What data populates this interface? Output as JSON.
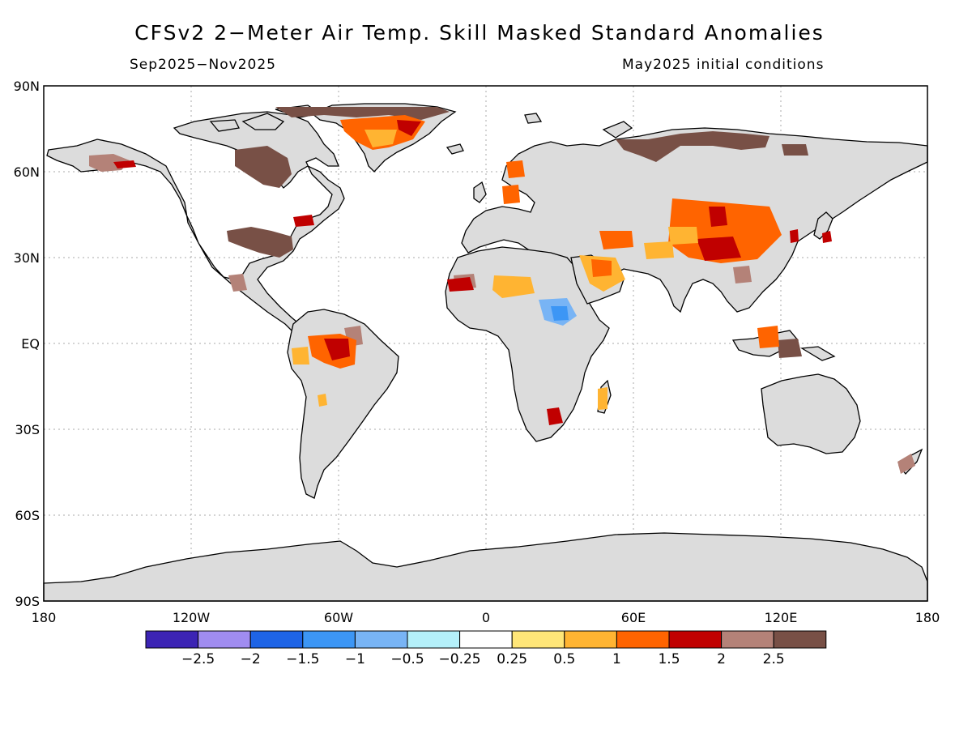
{
  "title": "CFSv2 2−Meter Air Temp. Skill Masked Standard Anomalies",
  "subtitle_left": "Sep2025−Nov2025",
  "subtitle_right": "May2025 initial conditions",
  "axes": {
    "lat_labels": [
      "90N",
      "60N",
      "30N",
      "EQ",
      "30S",
      "60S",
      "90S"
    ],
    "lon_labels": [
      "180",
      "120W",
      "60W",
      "0",
      "60E",
      "120E",
      "180"
    ]
  },
  "colorbar": {
    "colors": [
      "#3c24b4",
      "#a08cf0",
      "#1e64e6",
      "#3c96f5",
      "#78b4f5",
      "#b4f0fa",
      "#ffffff",
      "#ffe678",
      "#ffb432",
      "#ff6400",
      "#c00000",
      "#b48278",
      "#785046"
    ],
    "labels": [
      "−2.5",
      "−2",
      "−1.5",
      "−1",
      "−0.5",
      "−0.25",
      "0.25",
      "0.5",
      "1",
      "1.5",
      "2",
      "2.5"
    ]
  },
  "colors": {
    "land_masked": "#dcdcdc",
    "ocean": "#ffffff",
    "coastline": "#000000"
  }
}
